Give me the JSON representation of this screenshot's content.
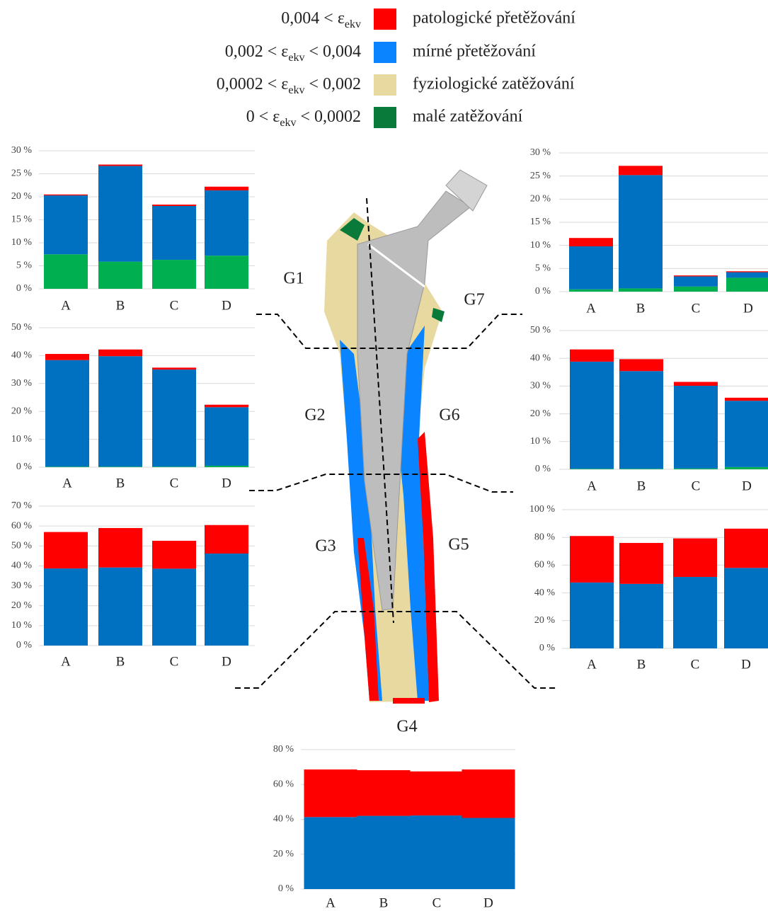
{
  "legend": [
    {
      "condition": [
        "0,004 <",
        "ε",
        "ekv",
        ""
      ],
      "name": "patologické přetěžování",
      "color": "#ff0000"
    },
    {
      "condition": [
        "0,002 <",
        "ε",
        "ekv",
        "< 0,004"
      ],
      "name": "mírné přetěžování",
      "color": "#0a84ff"
    },
    {
      "condition": [
        "0,0002 <",
        "ε",
        "ekv",
        "< 0,002"
      ],
      "name": "fyziologické zatěžování",
      "color": "#e8d9a0"
    },
    {
      "condition": [
        "0 <",
        "ε",
        "ekv",
        "< 0,0002"
      ],
      "name": "malé zatěžování",
      "color": "#0a7a3a"
    }
  ],
  "chart_data": [
    {
      "type": "bar",
      "stacked": true,
      "title": "G1",
      "categories": [
        "A",
        "B",
        "C",
        "D"
      ],
      "series": [
        {
          "color": "#00b050",
          "values": [
            7.5,
            5.9,
            6.3,
            7.2
          ]
        },
        {
          "color": "#0070c0",
          "values": [
            12.8,
            20.8,
            11.7,
            14.2
          ]
        },
        {
          "color": "#ff0000",
          "values": [
            0.2,
            0.3,
            0.3,
            0.8
          ]
        }
      ],
      "ylim": [
        0,
        30
      ],
      "yticks": [
        {
          "value": 0,
          "label": "0 %"
        },
        {
          "value": 5,
          "label": "5 %"
        },
        {
          "value": 10,
          "label": "10 %"
        },
        {
          "value": 15,
          "label": "15 %"
        },
        {
          "value": 20,
          "label": "20 %"
        },
        {
          "value": 25,
          "label": "25 %"
        },
        {
          "value": 30,
          "label": "30 %"
        }
      ],
      "grid": true
    },
    {
      "type": "bar",
      "stacked": true,
      "title": "G2",
      "categories": [
        "A",
        "B",
        "C",
        "D"
      ],
      "series": [
        {
          "color": "#00b050",
          "values": [
            0.2,
            0.2,
            0.2,
            0.5
          ]
        },
        {
          "color": "#0070c0",
          "values": [
            38.2,
            39.6,
            34.8,
            21
          ]
        },
        {
          "color": "#ff0000",
          "values": [
            2.2,
            2.4,
            0.7,
            0.9
          ]
        }
      ],
      "ylim": [
        0,
        50
      ],
      "yticks": [
        {
          "value": 0,
          "label": "0 %"
        },
        {
          "value": 10,
          "label": "10 %"
        },
        {
          "value": 20,
          "label": "20 %"
        },
        {
          "value": 30,
          "label": "30 %"
        },
        {
          "value": 40,
          "label": "40 %"
        },
        {
          "value": 50,
          "label": "50 %"
        }
      ],
      "grid": true
    },
    {
      "type": "bar",
      "stacked": true,
      "title": "G3",
      "categories": [
        "A",
        "B",
        "C",
        "D"
      ],
      "series": [
        {
          "color": "#0070c0",
          "values": [
            38.7,
            39.2,
            38.6,
            46.2
          ]
        },
        {
          "color": "#ff0000",
          "values": [
            18.3,
            19.8,
            14,
            14.3
          ]
        }
      ],
      "ylim": [
        0,
        70
      ],
      "yticks": [
        {
          "value": 0,
          "label": "0 %"
        },
        {
          "value": 10,
          "label": "10 %"
        },
        {
          "value": 20,
          "label": "20 %"
        },
        {
          "value": 30,
          "label": "30 %"
        },
        {
          "value": 40,
          "label": "40 %"
        },
        {
          "value": 50,
          "label": "50 %"
        },
        {
          "value": 60,
          "label": "60 %"
        },
        {
          "value": 70,
          "label": "70 %"
        }
      ],
      "grid": true
    },
    {
      "type": "bar",
      "stacked": true,
      "title": "G4",
      "categories": [
        "A",
        "B",
        "C",
        "D"
      ],
      "series": [
        {
          "color": "#0070c0",
          "values": [
            41.3,
            42,
            42.2,
            40.8
          ]
        },
        {
          "color": "#ff0000",
          "values": [
            27.3,
            26.2,
            25.3,
            27.8
          ]
        }
      ],
      "ylim": [
        0,
        80
      ],
      "yticks": [
        {
          "value": 0,
          "label": "0 %"
        },
        {
          "value": 20,
          "label": "20 %"
        },
        {
          "value": 40,
          "label": "40 %"
        },
        {
          "value": 60,
          "label": "60 %"
        },
        {
          "value": 80,
          "label": "80 %"
        }
      ],
      "grid": true
    },
    {
      "type": "bar",
      "stacked": true,
      "title": "G5",
      "categories": [
        "A",
        "B",
        "C",
        "D"
      ],
      "series": [
        {
          "color": "#0070c0",
          "values": [
            47.5,
            46.5,
            51.5,
            58
          ]
        },
        {
          "color": "#ff0000",
          "values": [
            33.5,
            29.5,
            27.8,
            28.3
          ]
        }
      ],
      "ylim": [
        0,
        100
      ],
      "yticks": [
        {
          "value": 0,
          "label": "0 %"
        },
        {
          "value": 20,
          "label": "20 %"
        },
        {
          "value": 40,
          "label": "40 %"
        },
        {
          "value": 60,
          "label": "60 %"
        },
        {
          "value": 80,
          "label": "80 %"
        },
        {
          "value": 100,
          "label": "100 %"
        }
      ],
      "grid": true
    },
    {
      "type": "bar",
      "stacked": true,
      "title": "G6",
      "categories": [
        "A",
        "B",
        "C",
        "D"
      ],
      "series": [
        {
          "color": "#00b050",
          "values": [
            0.2,
            0.2,
            0.3,
            0.8
          ]
        },
        {
          "color": "#0070c0",
          "values": [
            38.6,
            35.2,
            29.8,
            23.9
          ]
        },
        {
          "color": "#ff0000",
          "values": [
            4.4,
            4.3,
            1.4,
            1.1
          ]
        }
      ],
      "ylim": [
        0,
        50
      ],
      "yticks": [
        {
          "value": 0,
          "label": "0 %"
        },
        {
          "value": 10,
          "label": "10 %"
        },
        {
          "value": 20,
          "label": "20 %"
        },
        {
          "value": 30,
          "label": "30 %"
        },
        {
          "value": 40,
          "label": "40 %"
        },
        {
          "value": 50,
          "label": "50 %"
        }
      ],
      "grid": true
    },
    {
      "type": "bar",
      "stacked": true,
      "title": "G7",
      "categories": [
        "A",
        "B",
        "C",
        "D"
      ],
      "series": [
        {
          "color": "#00b050",
          "values": [
            0.5,
            0.7,
            1.1,
            3.0
          ]
        },
        {
          "color": "#0070c0",
          "values": [
            9.3,
            24.5,
            2.2,
            1.2
          ]
        },
        {
          "color": "#ff0000",
          "values": [
            1.8,
            2.0,
            0.2,
            0.2
          ]
        }
      ],
      "ylim": [
        0,
        30
      ],
      "yticks": [
        {
          "value": 0,
          "label": "0 %"
        },
        {
          "value": 5,
          "label": "5 %"
        },
        {
          "value": 10,
          "label": "10 %"
        },
        {
          "value": 15,
          "label": "15 %"
        },
        {
          "value": 20,
          "label": "20 %"
        },
        {
          "value": 25,
          "label": "25 %"
        },
        {
          "value": 30,
          "label": "30 %"
        }
      ],
      "grid": true
    }
  ]
}
